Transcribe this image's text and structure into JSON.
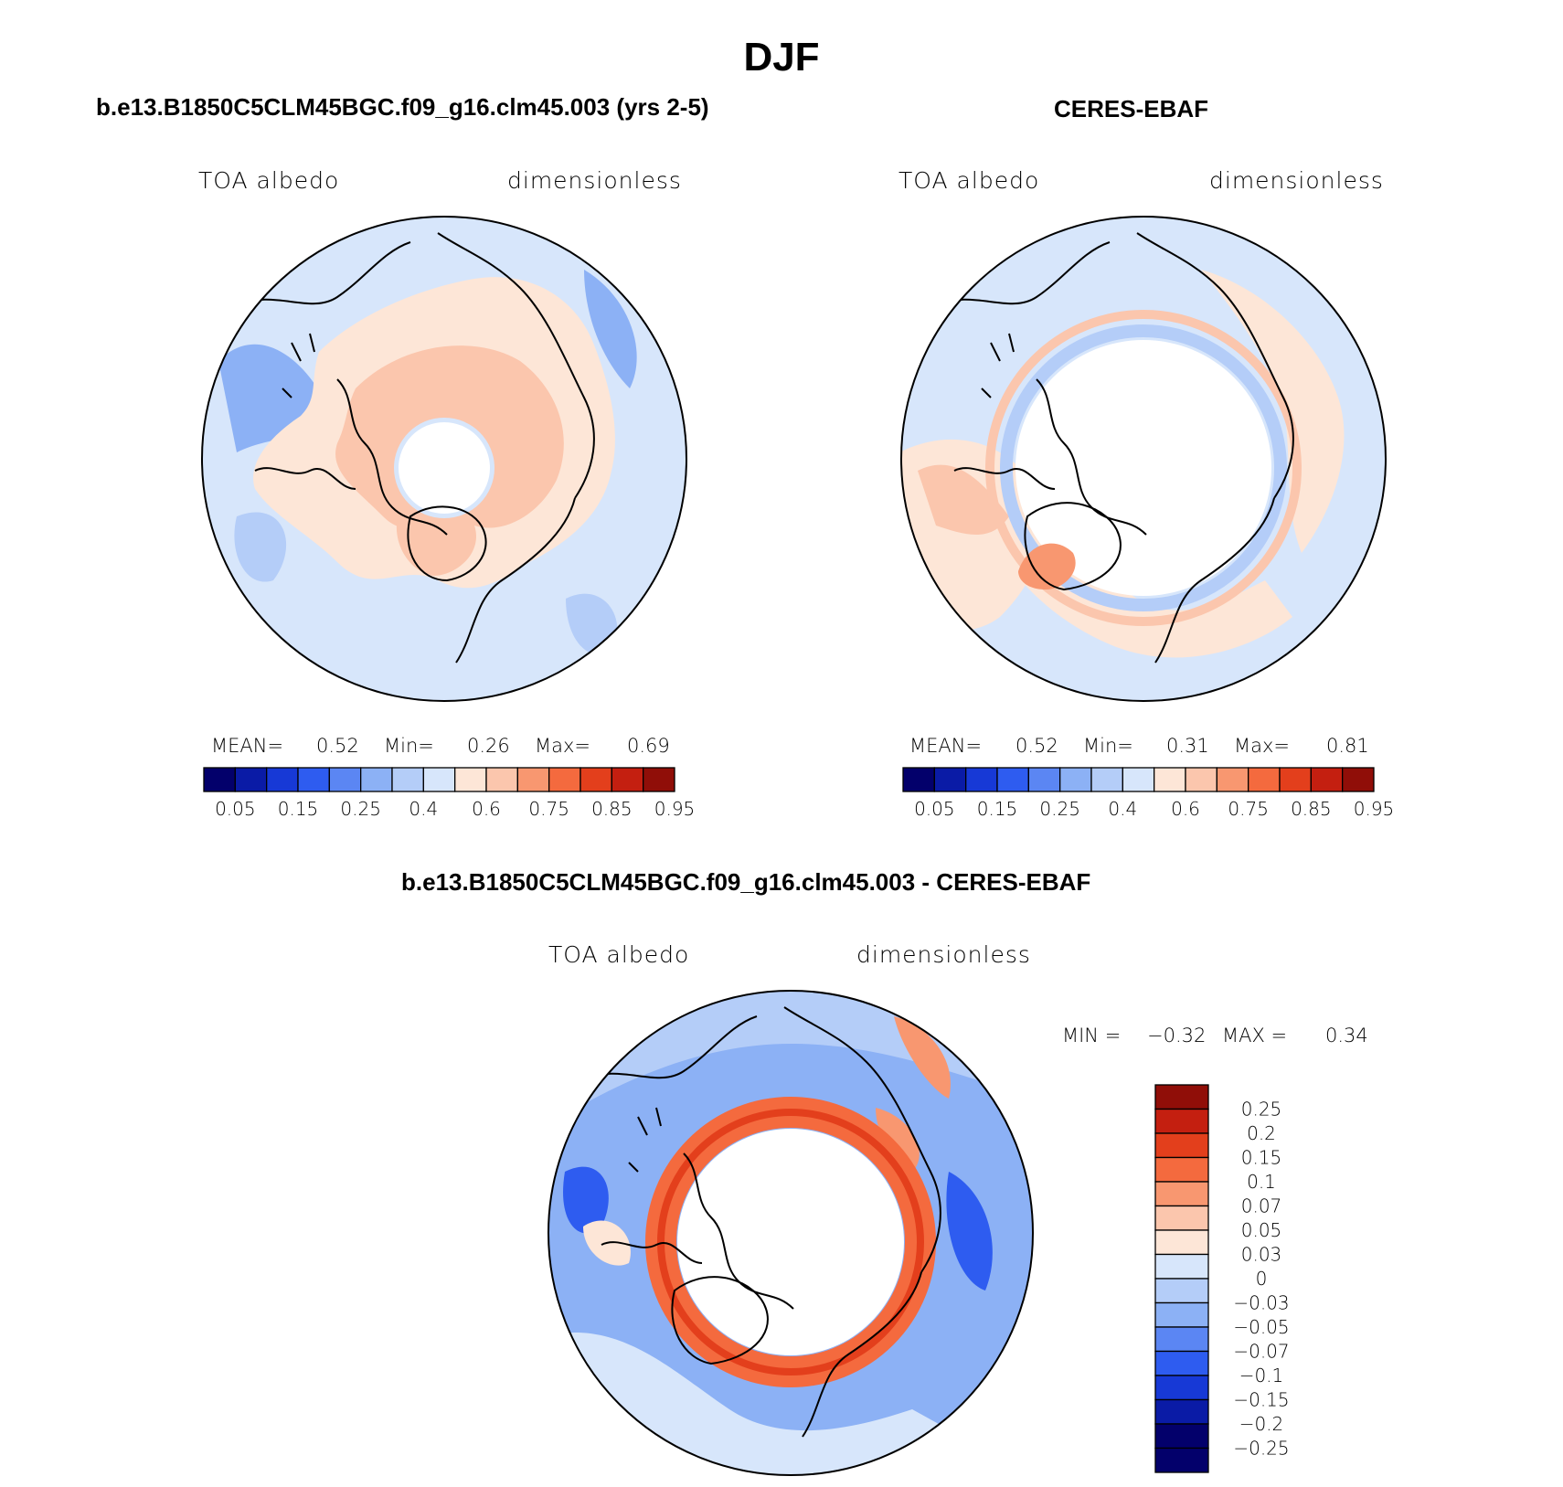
{
  "page": {
    "title": "DJF",
    "colors": {
      "ramp": [
        "#03006b",
        "#0a1ba6",
        "#1739d6",
        "#2e5cf0",
        "#5b86f3",
        "#8cb1f5",
        "#b4cdf8",
        "#d7e6fb",
        "#fde6d7",
        "#fbc6ad",
        "#f89770",
        "#f46a3e",
        "#e33f1c",
        "#c41f10",
        "#900e08"
      ],
      "diff_ramp": [
        "#03006b",
        "#0a1ba6",
        "#1739d6",
        "#2e5cf0",
        "#5b86f3",
        "#8cb1f5",
        "#b4cdf8",
        "#d7e6fb",
        "#fde6d7",
        "#fbc6ad",
        "#f89770",
        "#f46a3e",
        "#e33f1c",
        "#c41f10",
        "#900e08"
      ]
    }
  },
  "chart_data": [
    {
      "type": "heatmap",
      "projection": "north polar stereographic",
      "title": "b.e13.B1850C5CLM45BGC.f09_g16.clm45.003 (yrs 2-5)",
      "left_label": "TOA albedo",
      "right_label": "dimensionless",
      "stats": {
        "mean_label": "MEAN=",
        "mean": "0.52",
        "min_label": "Min=",
        "min": "0.26",
        "max_label": "Max=",
        "max": "0.69"
      },
      "colorbar_ticks": [
        "0.05",
        "0.15",
        "0.25",
        "0.4",
        "0.6",
        "0.75",
        "0.85",
        "0.95"
      ],
      "colorbar_levels": [
        0.05,
        0.1,
        0.15,
        0.2,
        0.25,
        0.3,
        0.4,
        0.5,
        0.6,
        0.7,
        0.75,
        0.8,
        0.85,
        0.9,
        0.95
      ]
    },
    {
      "type": "heatmap",
      "projection": "north polar stereographic",
      "title": "CERES-EBAF",
      "left_label": "TOA albedo",
      "right_label": "dimensionless",
      "stats": {
        "mean_label": "MEAN=",
        "mean": "0.52",
        "min_label": "Min=",
        "min": "0.31",
        "max_label": "Max=",
        "max": "0.81"
      },
      "colorbar_ticks": [
        "0.05",
        "0.15",
        "0.25",
        "0.4",
        "0.6",
        "0.75",
        "0.85",
        "0.95"
      ],
      "colorbar_levels": [
        0.05,
        0.1,
        0.15,
        0.2,
        0.25,
        0.3,
        0.4,
        0.5,
        0.6,
        0.7,
        0.75,
        0.8,
        0.85,
        0.9,
        0.95
      ]
    },
    {
      "type": "heatmap",
      "projection": "north polar stereographic",
      "title": "b.e13.B1850C5CLM45BGC.f09_g16.clm45.003 - CERES-EBAF",
      "left_label": "TOA albedo",
      "right_label": "dimensionless",
      "stats": {
        "min_label": "MIN =",
        "min": "−0.32",
        "max_label": "MAX =",
        "max": "0.34"
      },
      "colorbar_ticks": [
        "0.25",
        "0.2",
        "0.15",
        "0.1",
        "0.07",
        "0.05",
        "0.03",
        "0",
        "−0.03",
        "−0.05",
        "−0.07",
        "−0.1",
        "−0.15",
        "−0.2",
        "−0.25"
      ]
    }
  ]
}
